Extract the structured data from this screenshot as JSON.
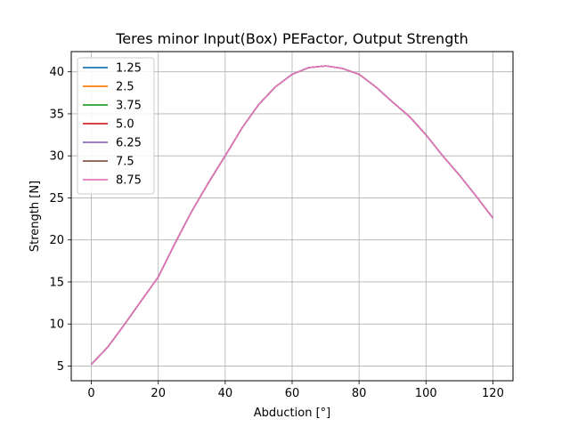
{
  "chart_data": {
    "type": "line",
    "title": "Teres minor Input(Box) PEFactor, Output Strength",
    "xlabel": "Abduction [°]",
    "ylabel": "Strength [N]",
    "xlim": [
      -6,
      126
    ],
    "ylim": [
      3.25,
      42.4
    ],
    "xticks": [
      0,
      20,
      40,
      60,
      80,
      100,
      120
    ],
    "yticks": [
      5,
      10,
      15,
      20,
      25,
      30,
      35,
      40
    ],
    "grid": true,
    "legend_position": "top-left",
    "x": [
      0,
      5,
      10,
      15,
      20,
      25,
      30,
      35,
      40,
      45,
      50,
      55,
      60,
      65,
      70,
      75,
      80,
      85,
      90,
      95,
      100,
      105,
      110,
      115,
      120
    ],
    "series": [
      {
        "name": "1.25",
        "color": "#1f77b4",
        "values": [
          5.2,
          7.3,
          10.0,
          12.8,
          15.6,
          19.6,
          23.4,
          26.8,
          30.0,
          33.3,
          36.1,
          38.2,
          39.7,
          40.5,
          40.7,
          40.4,
          39.7,
          38.2,
          36.4,
          34.7,
          32.5,
          30.0,
          27.7,
          25.2,
          22.6
        ]
      },
      {
        "name": "2.5",
        "color": "#ff7f0e",
        "values": [
          5.2,
          7.3,
          10.0,
          12.8,
          15.6,
          19.6,
          23.4,
          26.8,
          30.0,
          33.3,
          36.1,
          38.2,
          39.7,
          40.5,
          40.7,
          40.4,
          39.7,
          38.2,
          36.4,
          34.7,
          32.5,
          30.0,
          27.7,
          25.2,
          22.6
        ]
      },
      {
        "name": "3.75",
        "color": "#2ca02c",
        "values": [
          5.2,
          7.3,
          10.0,
          12.8,
          15.6,
          19.6,
          23.4,
          26.8,
          30.0,
          33.3,
          36.1,
          38.2,
          39.7,
          40.5,
          40.7,
          40.4,
          39.7,
          38.2,
          36.4,
          34.7,
          32.5,
          30.0,
          27.7,
          25.2,
          22.6
        ]
      },
      {
        "name": "5.0",
        "color": "#d62728",
        "values": [
          5.2,
          7.3,
          10.0,
          12.8,
          15.6,
          19.6,
          23.4,
          26.8,
          30.0,
          33.3,
          36.1,
          38.2,
          39.7,
          40.5,
          40.7,
          40.4,
          39.7,
          38.2,
          36.4,
          34.7,
          32.5,
          30.0,
          27.7,
          25.2,
          22.6
        ]
      },
      {
        "name": "6.25",
        "color": "#9467bd",
        "values": [
          5.2,
          7.3,
          10.0,
          12.8,
          15.6,
          19.6,
          23.4,
          26.8,
          30.0,
          33.3,
          36.1,
          38.2,
          39.7,
          40.5,
          40.7,
          40.4,
          39.7,
          38.2,
          36.4,
          34.7,
          32.5,
          30.0,
          27.7,
          25.2,
          22.6
        ]
      },
      {
        "name": "7.5",
        "color": "#8c564b",
        "values": [
          5.2,
          7.3,
          10.0,
          12.8,
          15.6,
          19.6,
          23.4,
          26.8,
          30.0,
          33.3,
          36.1,
          38.2,
          39.7,
          40.5,
          40.7,
          40.4,
          39.7,
          38.2,
          36.4,
          34.7,
          32.5,
          30.0,
          27.7,
          25.2,
          22.6
        ]
      },
      {
        "name": "8.75",
        "color": "#e377c2",
        "values": [
          5.2,
          7.3,
          10.0,
          12.8,
          15.6,
          19.6,
          23.4,
          26.8,
          30.0,
          33.3,
          36.1,
          38.2,
          39.7,
          40.5,
          40.7,
          40.4,
          39.7,
          38.2,
          36.4,
          34.7,
          32.5,
          30.0,
          27.7,
          25.2,
          22.6
        ]
      }
    ]
  }
}
